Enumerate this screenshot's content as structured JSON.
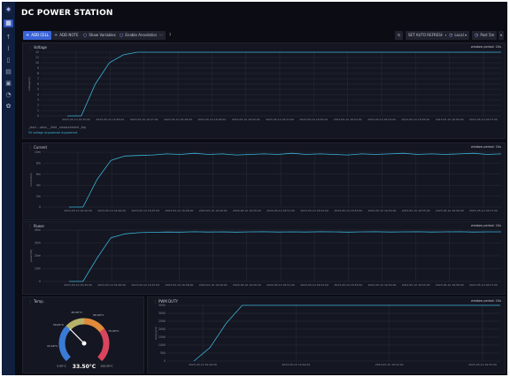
{
  "app": {
    "title": "DC POWER STATION"
  },
  "toolbar": {
    "add_cell": "ADD CELL",
    "add_note": "ADD NOTE",
    "show_variables": "Show Variables",
    "enable_annotations": "Enable Annotations",
    "refresh": "SET AUTO REFRESH",
    "timezone": "Local",
    "range": "Past 5m"
  },
  "panels": {
    "voltage": {
      "title": "Voltage",
      "period": "window period: 10s"
    },
    "current": {
      "title": "Current",
      "period": "window period: 10s"
    },
    "power": {
      "title": "Power",
      "period": "window period: 10s"
    },
    "temp": {
      "title": "Temp."
    },
    "pwm": {
      "title": "PWM DUTY",
      "period": "window period: 10s"
    }
  },
  "legend": {
    "headers": [
      "_start ...ation_  _field  _measurement  _tag"
    ],
    "values": [
      "5V  voltage  dcpowersel  dcpowersel"
    ]
  },
  "gauge": {
    "value": "33.50°C",
    "ticks": [
      "0.00°C",
      "15.00°C",
      "30.00°C",
      "45.00°C",
      "60.00°C",
      "75.00°C",
      "100.00°C"
    ],
    "min": 0,
    "max": 100,
    "current": 33.5
  },
  "chart_data": [
    {
      "type": "line",
      "name": "voltage",
      "y_ticks": [
        "12",
        "11",
        "10",
        "9",
        "8",
        "7",
        "6",
        "5",
        "4",
        "3",
        "2",
        "1",
        "0"
      ],
      "ylim": [
        0,
        12
      ],
      "x_ticks": [
        "2023-05-10 16:45:00",
        "2023-05-10 16:46:00",
        "2023-05-10 16:47:00",
        "2023-05-10 16:48:00",
        "2023-05-10 16:49:00",
        "2023-05-10 16:50:00",
        "2023-05-10 16:51:00",
        "2023-05-10 16:52:00",
        "2023-05-10 16:53:00",
        "2023-05-10 16:54:00",
        "2023-05-10 16:55:00",
        "2023-05-10 16:56:00",
        "2023-05-10 16:57:00"
      ],
      "ylabel": "voltage(V)",
      "series": [
        {
          "values": [
            0,
            0,
            6,
            10,
            11.5,
            12,
            12,
            12,
            12,
            12,
            12,
            12,
            12,
            12,
            12,
            12,
            12,
            12,
            12,
            12,
            12,
            12,
            12,
            12,
            12,
            12,
            12,
            12,
            12,
            12,
            12,
            12
          ]
        }
      ]
    },
    {
      "type": "line",
      "name": "current",
      "y_ticks": [
        "10m",
        "8m",
        "6m",
        "4m",
        "2m",
        "0"
      ],
      "ylim": [
        0,
        10
      ],
      "x_ticks": [
        "2023-05-10 16:45:00",
        "2023-05-10 16:46:00",
        "2023-05-10 16:47:00",
        "2023-05-10 16:48:00",
        "2023-05-10 16:49:00",
        "2023-05-10 16:50:00",
        "2023-05-10 16:51:00",
        "2023-05-10 16:52:00",
        "2023-05-10 16:53:00",
        "2023-05-10 16:54:00",
        "2023-05-10 16:55:00",
        "2023-05-10 16:56:00",
        "2023-05-10 16:57:00"
      ],
      "ylabel": "current(A)",
      "series": [
        {
          "values": [
            0,
            0,
            5,
            8.5,
            9.3,
            9.4,
            9.5,
            9.7,
            9.6,
            9.8,
            9.6,
            9.7,
            9.5,
            9.6,
            9.7,
            9.6,
            9.8,
            9.6,
            9.7,
            9.6,
            9.5,
            9.7,
            9.6,
            9.7,
            9.8,
            9.6,
            9.7,
            9.6,
            9.7,
            9.8,
            9.6,
            9.7
          ]
        }
      ]
    },
    {
      "type": "line",
      "name": "power",
      "y_ticks": [
        "40m",
        "30m",
        "20m",
        "10m",
        "0"
      ],
      "ylim": [
        0,
        40
      ],
      "x_ticks": [
        "2023-05-10 16:45:00",
        "2023-05-10 16:46:00",
        "2023-05-10 16:47:00",
        "2023-05-10 16:48:00",
        "2023-05-10 16:49:00",
        "2023-05-10 16:50:00",
        "2023-05-10 16:51:00",
        "2023-05-10 16:52:00",
        "2023-05-10 16:53:00",
        "2023-05-10 16:54:00",
        "2023-05-10 16:55:00",
        "2023-05-10 16:56:00",
        "2023-05-10 16:57:00"
      ],
      "ylabel": "power(W)",
      "series": [
        {
          "values": [
            0,
            0,
            18,
            34,
            37,
            38,
            38.3,
            38.5,
            38.4,
            38.7,
            38.5,
            38.6,
            38.4,
            38.6,
            38.7,
            38.5,
            38.6,
            38.5,
            38.7,
            38.6,
            38.4,
            38.6,
            38.7,
            38.5,
            38.6,
            38.7,
            38.5,
            38.6,
            38.7,
            38.5,
            38.6,
            38.6
          ]
        }
      ]
    },
    {
      "type": "line",
      "name": "pwm",
      "y_ticks": [
        "3500",
        "3000",
        "2500",
        "2000",
        "1500",
        "1000",
        "500",
        "0"
      ],
      "ylim": [
        0,
        3700
      ],
      "x_ticks": [
        "2023-05-10 16:46:00",
        "2023-05-10 16:49:00",
        "2023-05-10 16:52:00",
        "2023-05-10 16:55:00"
      ],
      "ylabel": "dutycycle",
      "series": [
        {
          "values": [
            0,
            900,
            2500,
            3700,
            3700,
            3700,
            3700,
            3700,
            3700,
            3700,
            3700,
            3700,
            3700,
            3700,
            3700,
            3700,
            3700,
            3700,
            3700,
            3700
          ]
        }
      ]
    }
  ]
}
